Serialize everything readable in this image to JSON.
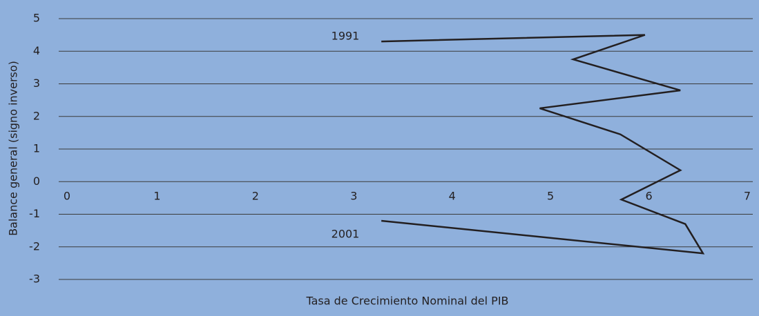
{
  "chart_data": {
    "type": "line",
    "x_label": "Tasa de Crecimiento Nominal del PIB",
    "y_label": "Balance general (signo inverso)",
    "annotations": [
      "1991",
      "2001"
    ],
    "x": [
      3.28,
      5.96,
      5.23,
      6.32,
      4.89,
      5.71,
      6.32,
      5.72,
      6.37,
      6.55,
      3.28
    ],
    "series": [
      {
        "color": "#231f20",
        "values": [
          4.3,
          4.5,
          3.75,
          2.8,
          2.25,
          1.45,
          0.35,
          -0.55,
          -1.3,
          -2.2,
          -1.2
        ]
      }
    ],
    "xlim": [
      0,
      7
    ],
    "xticks": [
      0,
      1,
      2,
      3,
      4,
      5,
      6,
      7
    ],
    "ylim": [
      -3,
      5
    ],
    "yticks": [
      5,
      4,
      3,
      2,
      1,
      0,
      -1,
      -2,
      -3
    ],
    "grid": true
  }
}
